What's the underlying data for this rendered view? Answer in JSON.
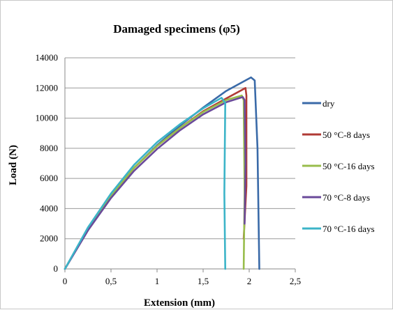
{
  "chart_data": {
    "type": "line",
    "title": "Damaged specimens (φ5)",
    "xlabel": "Extension (mm)",
    "ylabel": "Load (N)",
    "xlim": [
      0,
      2.5
    ],
    "ylim": [
      0,
      14000
    ],
    "xticks": [
      "0",
      "0,5",
      "1",
      "1,5",
      "2",
      "2,5"
    ],
    "yticks": [
      "0",
      "2000",
      "4000",
      "6000",
      "8000",
      "10000",
      "12000",
      "14000"
    ],
    "grid": "horizontal",
    "legend_position": "right",
    "series": [
      {
        "name": "dry",
        "color": "#3a6aa8",
        "points": [
          [
            0,
            0
          ],
          [
            0.25,
            2600
          ],
          [
            0.5,
            4800
          ],
          [
            0.75,
            6700
          ],
          [
            1.0,
            8200
          ],
          [
            1.25,
            9500
          ],
          [
            1.5,
            10700
          ],
          [
            1.75,
            11800
          ],
          [
            2.02,
            12700
          ],
          [
            2.06,
            12500
          ],
          [
            2.09,
            8000
          ],
          [
            2.11,
            0
          ]
        ]
      },
      {
        "name": "50 °C-8 days",
        "color": "#b03a35",
        "points": [
          [
            0,
            0
          ],
          [
            0.25,
            2650
          ],
          [
            0.5,
            4850
          ],
          [
            0.75,
            6700
          ],
          [
            1.0,
            8150
          ],
          [
            1.25,
            9350
          ],
          [
            1.5,
            10450
          ],
          [
            1.75,
            11300
          ],
          [
            1.96,
            12000
          ],
          [
            1.97,
            11500
          ],
          [
            1.97,
            5500
          ],
          [
            1.94,
            2000
          ]
        ]
      },
      {
        "name": "50 °C-16 days",
        "color": "#98bd4c",
        "points": [
          [
            0,
            0
          ],
          [
            0.25,
            2650
          ],
          [
            0.5,
            4850
          ],
          [
            0.75,
            6700
          ],
          [
            1.0,
            8150
          ],
          [
            1.25,
            9350
          ],
          [
            1.5,
            10400
          ],
          [
            1.75,
            11200
          ],
          [
            1.92,
            11500
          ],
          [
            1.94,
            11200
          ],
          [
            1.95,
            5000
          ],
          [
            1.94,
            0
          ]
        ]
      },
      {
        "name": "70 °C-8 days",
        "color": "#6a4a9a",
        "points": [
          [
            0,
            0
          ],
          [
            0.25,
            2550
          ],
          [
            0.5,
            4700
          ],
          [
            0.75,
            6500
          ],
          [
            1.0,
            7950
          ],
          [
            1.25,
            9200
          ],
          [
            1.5,
            10250
          ],
          [
            1.75,
            11050
          ],
          [
            1.93,
            11400
          ],
          [
            1.95,
            11200
          ],
          [
            1.96,
            7000
          ],
          [
            1.95,
            3000
          ]
        ]
      },
      {
        "name": "70 °C-16 days",
        "color": "#3cb4c8",
        "points": [
          [
            0,
            0
          ],
          [
            0.25,
            2750
          ],
          [
            0.5,
            5000
          ],
          [
            0.75,
            6900
          ],
          [
            1.0,
            8400
          ],
          [
            1.25,
            9600
          ],
          [
            1.5,
            10650
          ],
          [
            1.7,
            11350
          ],
          [
            1.74,
            11000
          ],
          [
            1.73,
            5000
          ],
          [
            1.74,
            0
          ]
        ]
      }
    ]
  }
}
